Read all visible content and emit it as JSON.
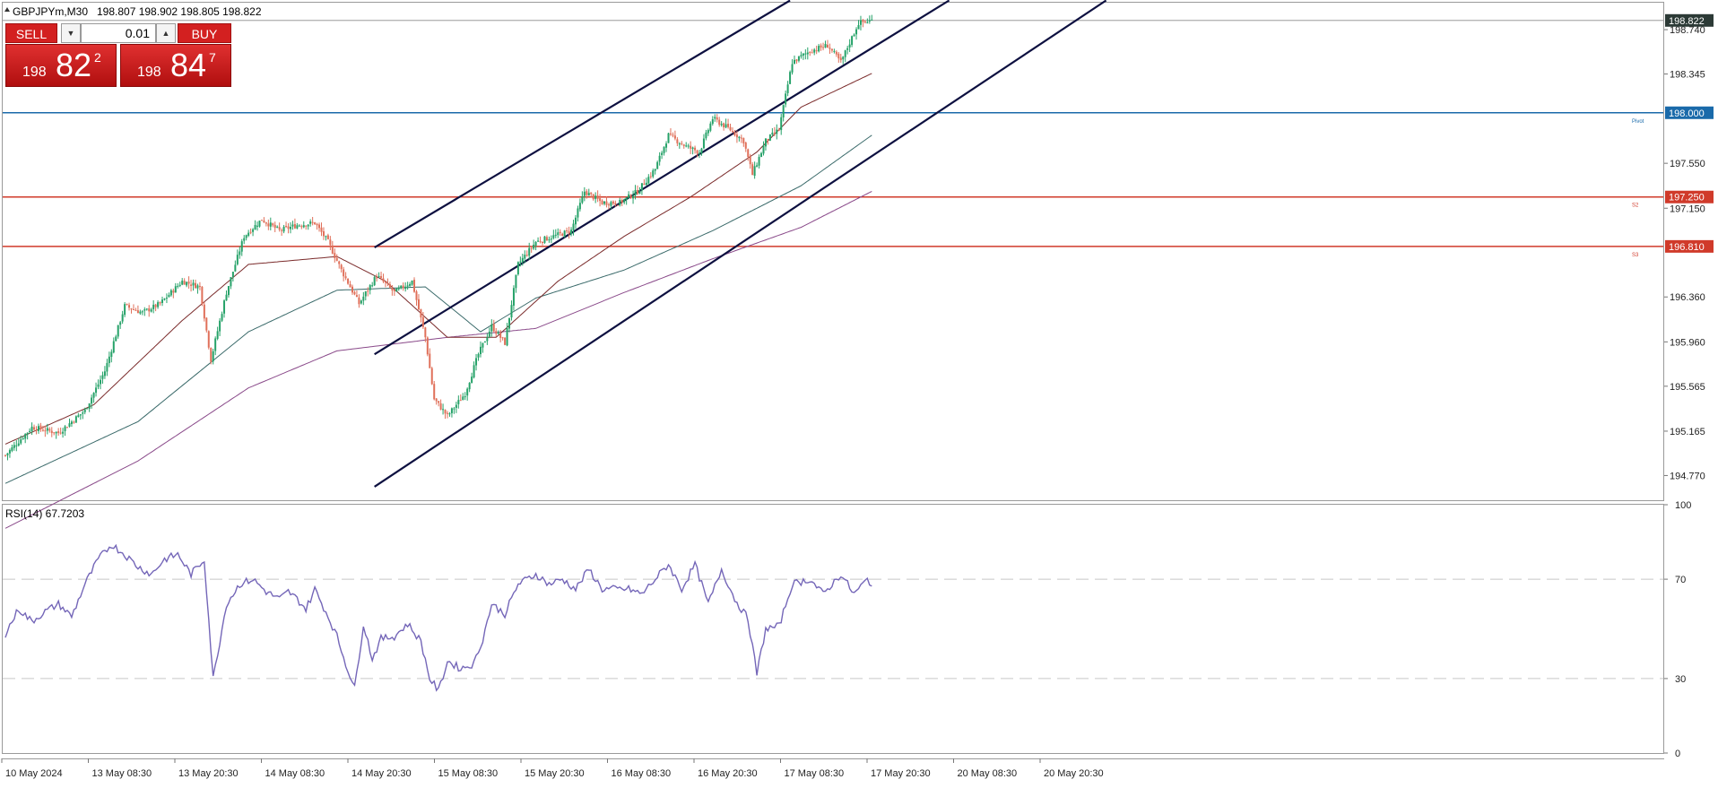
{
  "header": {
    "symbol_text": "GBPJPYm,M30",
    "ohlc_text": "198.807 198.902 198.805 198.822"
  },
  "trade_panel": {
    "sell_label": "SELL",
    "buy_label": "BUY",
    "lot_value": "0.01",
    "bid_prefix": "198",
    "bid_big": "82",
    "bid_sup": "2",
    "ask_prefix": "198",
    "ask_big": "84",
    "ask_sup": "7"
  },
  "colors": {
    "bull": "#26a269",
    "bear": "#e0705a",
    "ma_fast": "#7a2a2a",
    "ma_mid": "#3a6a6a",
    "ma_slow": "#8a4a8a",
    "channel": "#0d1040",
    "rsi": "#7466b8",
    "support": "#d03a2a",
    "pivot": "#1a6aaa"
  },
  "chart_data": [
    {
      "type": "candlestick",
      "symbol": "GBPJPYm",
      "timeframe": "M30",
      "ylim": [
        194.55,
        198.98
      ],
      "y_ticks": [
        "198.740",
        "198.345",
        "197.550",
        "197.150",
        "196.360",
        "195.960",
        "195.565",
        "195.165",
        "194.770"
      ],
      "x_ticks": [
        "10 May 2024",
        "13 May 08:30",
        "13 May 20:30",
        "14 May 08:30",
        "14 May 20:30",
        "15 May 08:30",
        "15 May 20:30",
        "16 May 08:30",
        "16 May 20:30",
        "17 May 08:30",
        "17 May 20:30",
        "20 May 08:30",
        "20 May 20:30"
      ],
      "current_price": {
        "value": 198.822,
        "label": "198.822"
      },
      "levels": [
        {
          "name": "Pivot",
          "value": 198.0,
          "label": "198.000",
          "color": "#1a6aaa"
        },
        {
          "name": "S2",
          "value": 197.25,
          "label": "197.250",
          "color": "#d03a2a"
        },
        {
          "name": "S3",
          "value": 196.81,
          "label": "196.810",
          "color": "#d03a2a"
        }
      ],
      "close_anchors": [
        [
          0,
          194.95
        ],
        [
          12,
          195.2
        ],
        [
          24,
          195.15
        ],
        [
          36,
          195.35
        ],
        [
          45,
          195.7
        ],
        [
          54,
          196.28
        ],
        [
          62,
          196.22
        ],
        [
          70,
          196.3
        ],
        [
          80,
          196.5
        ],
        [
          88,
          196.45
        ],
        [
          93,
          195.8
        ],
        [
          100,
          196.4
        ],
        [
          108,
          196.9
        ],
        [
          116,
          197.05
        ],
        [
          124,
          196.95
        ],
        [
          132,
          197.0
        ],
        [
          140,
          197.02
        ],
        [
          146,
          196.85
        ],
        [
          152,
          196.6
        ],
        [
          160,
          196.3
        ],
        [
          168,
          196.55
        ],
        [
          176,
          196.4
        ],
        [
          184,
          196.5
        ],
        [
          190,
          196.0
        ],
        [
          194,
          195.45
        ],
        [
          200,
          195.3
        ],
        [
          208,
          195.5
        ],
        [
          214,
          195.85
        ],
        [
          220,
          196.1
        ],
        [
          226,
          195.95
        ],
        [
          232,
          196.65
        ],
        [
          240,
          196.85
        ],
        [
          248,
          196.9
        ],
        [
          256,
          196.95
        ],
        [
          262,
          197.3
        ],
        [
          270,
          197.2
        ],
        [
          278,
          197.2
        ],
        [
          286,
          197.3
        ],
        [
          294,
          197.5
        ],
        [
          300,
          197.8
        ],
        [
          308,
          197.7
        ],
        [
          314,
          197.65
        ],
        [
          320,
          197.95
        ],
        [
          328,
          197.85
        ],
        [
          334,
          197.75
        ],
        [
          338,
          197.45
        ],
        [
          344,
          197.75
        ],
        [
          350,
          197.85
        ],
        [
          356,
          198.45
        ],
        [
          364,
          198.55
        ],
        [
          372,
          198.6
        ],
        [
          378,
          198.45
        ],
        [
          386,
          198.8
        ],
        [
          392,
          198.822
        ]
      ],
      "ma_fast_anchors": [
        [
          0,
          195.05
        ],
        [
          40,
          195.4
        ],
        [
          80,
          196.15
        ],
        [
          110,
          196.65
        ],
        [
          150,
          196.72
        ],
        [
          172,
          196.5
        ],
        [
          200,
          196.0
        ],
        [
          222,
          196.0
        ],
        [
          250,
          196.5
        ],
        [
          280,
          196.9
        ],
        [
          310,
          197.25
        ],
        [
          340,
          197.65
        ],
        [
          360,
          198.05
        ],
        [
          392,
          198.35
        ]
      ],
      "ma_mid_anchors": [
        [
          0,
          194.7
        ],
        [
          60,
          195.25
        ],
        [
          110,
          196.05
        ],
        [
          150,
          196.42
        ],
        [
          190,
          196.45
        ],
        [
          215,
          196.05
        ],
        [
          240,
          196.35
        ],
        [
          280,
          196.6
        ],
        [
          320,
          196.95
        ],
        [
          360,
          197.35
        ],
        [
          392,
          197.8
        ]
      ],
      "ma_slow_anchors": [
        [
          0,
          194.3
        ],
        [
          60,
          194.9
        ],
        [
          110,
          195.55
        ],
        [
          150,
          195.88
        ],
        [
          200,
          196.0
        ],
        [
          240,
          196.08
        ],
        [
          280,
          196.4
        ],
        [
          320,
          196.7
        ],
        [
          360,
          196.98
        ],
        [
          392,
          197.3
        ]
      ],
      "channel_lines": [
        {
          "from": [
            167,
            196.8
          ],
          "to": [
            355,
            199.0
          ]
        },
        {
          "from": [
            167,
            195.85
          ],
          "to": [
            427,
            199.0
          ]
        },
        {
          "from": [
            167,
            194.67
          ],
          "to": [
            498,
            199.0
          ]
        }
      ]
    },
    {
      "type": "line",
      "title": "RSI(14) 67.7203",
      "ylim": [
        0,
        100
      ],
      "y_ticks": [
        "100",
        "70",
        "30",
        "0"
      ],
      "levels": [
        70,
        30
      ],
      "rsi_anchors": [
        [
          0,
          48
        ],
        [
          6,
          58
        ],
        [
          12,
          53
        ],
        [
          18,
          57
        ],
        [
          24,
          60
        ],
        [
          30,
          55
        ],
        [
          36,
          68
        ],
        [
          42,
          78
        ],
        [
          48,
          84
        ],
        [
          54,
          80
        ],
        [
          60,
          75
        ],
        [
          66,
          72
        ],
        [
          72,
          78
        ],
        [
          78,
          80
        ],
        [
          84,
          72
        ],
        [
          90,
          78
        ],
        [
          94,
          30
        ],
        [
          100,
          60
        ],
        [
          106,
          68
        ],
        [
          112,
          70
        ],
        [
          118,
          65
        ],
        [
          124,
          62
        ],
        [
          128,
          65
        ],
        [
          132,
          62
        ],
        [
          136,
          58
        ],
        [
          140,
          66
        ],
        [
          146,
          55
        ],
        [
          150,
          47
        ],
        [
          154,
          36
        ],
        [
          158,
          26
        ],
        [
          162,
          52
        ],
        [
          166,
          38
        ],
        [
          170,
          46
        ],
        [
          176,
          47
        ],
        [
          182,
          52
        ],
        [
          188,
          45
        ],
        [
          192,
          30
        ],
        [
          196,
          25
        ],
        [
          200,
          37
        ],
        [
          206,
          34
        ],
        [
          212,
          36
        ],
        [
          216,
          46
        ],
        [
          220,
          60
        ],
        [
          226,
          56
        ],
        [
          232,
          68
        ],
        [
          240,
          72
        ],
        [
          246,
          68
        ],
        [
          252,
          70
        ],
        [
          258,
          66
        ],
        [
          264,
          74
        ],
        [
          270,
          66
        ],
        [
          276,
          66
        ],
        [
          282,
          66
        ],
        [
          288,
          64
        ],
        [
          294,
          70
        ],
        [
          300,
          76
        ],
        [
          306,
          66
        ],
        [
          312,
          76
        ],
        [
          318,
          60
        ],
        [
          324,
          74
        ],
        [
          330,
          62
        ],
        [
          336,
          54
        ],
        [
          340,
          32
        ],
        [
          344,
          50
        ],
        [
          350,
          51
        ],
        [
          356,
          68
        ],
        [
          364,
          70
        ],
        [
          370,
          64
        ],
        [
          378,
          72
        ],
        [
          384,
          64
        ],
        [
          390,
          70
        ],
        [
          392,
          68
        ]
      ]
    }
  ]
}
